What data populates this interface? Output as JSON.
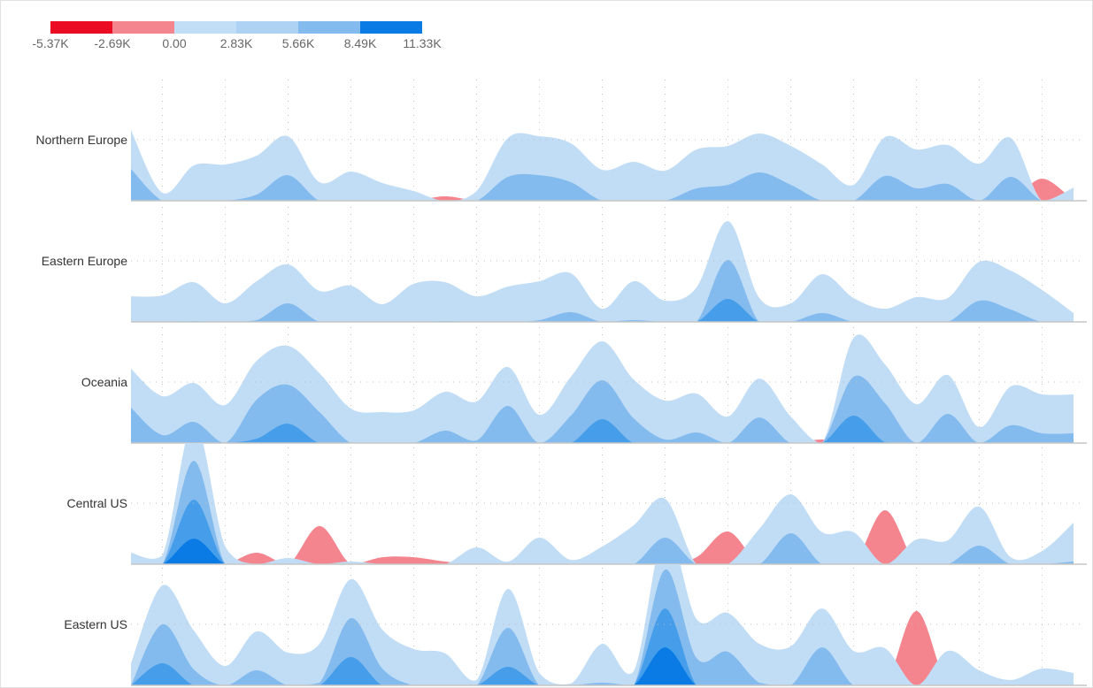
{
  "chart_data": {
    "type": "area",
    "subtype": "horizon",
    "band_size_k": 2.83,
    "negative_band_size_k": 2.69,
    "legend": {
      "ticks": [
        "-5.37K",
        "-2.69K",
        "0.00",
        "2.83K",
        "5.66K",
        "8.49K",
        "11.33K"
      ],
      "colors": [
        "#eb0c24",
        "#f4858f",
        "#c2ddf6",
        "#aed2f4",
        "#84bbee",
        "#0a7ae5"
      ],
      "placement": "top-left"
    },
    "layer_colors_positive": [
      "#c1ddf6",
      "#84bbee",
      "#469eea",
      "#0a7ae5"
    ],
    "layer_colors_negative": [
      "#f4858f",
      "#eb0c24"
    ],
    "x_points": 31,
    "grid": true,
    "series": [
      {
        "name": "Northern Europe",
        "values": [
          5.14,
          0.58,
          2.57,
          2.64,
          3.28,
          4.69,
          1.35,
          2.12,
          1.29,
          0.71,
          -0.32,
          0.71,
          4.57,
          4.69,
          4.18,
          2.25,
          2.83,
          2.19,
          3.73,
          3.99,
          4.89,
          3.99,
          2.64,
          1.16,
          4.63,
          3.73,
          4.05,
          2.7,
          4.57,
          -1.61,
          0.96
        ]
      },
      {
        "name": "Eastern Europe",
        "values": [
          1.86,
          1.93,
          2.89,
          1.35,
          2.96,
          4.18,
          2.25,
          2.64,
          1.29,
          2.77,
          2.89,
          1.86,
          2.57,
          2.96,
          3.54,
          0.96,
          2.96,
          1.54,
          2.51,
          7.33,
          1.74,
          1.35,
          3.47,
          1.74,
          0.96,
          1.8,
          1.74,
          4.37,
          3.73,
          2.32,
          0.64
        ]
      },
      {
        "name": "Oceania",
        "values": [
          5.4,
          3.41,
          4.37,
          2.77,
          5.98,
          7.07,
          5.08,
          2.51,
          2.25,
          2.38,
          3.73,
          3.02,
          5.53,
          2.06,
          4.82,
          7.4,
          4.63,
          3.09,
          3.6,
          1.93,
          4.69,
          1.93,
          -0.26,
          7.65,
          5.72,
          2.83,
          4.95,
          1.16,
          4.12,
          3.54,
          3.54
        ]
      },
      {
        "name": "Central US",
        "values": [
          0.84,
          0.64,
          10.35,
          1.29,
          -0.84,
          0.45,
          -2.77,
          0.19,
          -0.51,
          -0.51,
          -0.19,
          1.22,
          0.19,
          1.93,
          0.32,
          1.29,
          2.83,
          4.76,
          -0.51,
          -2.38,
          2.57,
          5.08,
          2.32,
          2.32,
          -3.92,
          1.8,
          1.74,
          4.18,
          0.51,
          0.96,
          3.02
        ]
      },
      {
        "name": "Eastern US",
        "values": [
          1.61,
          7.27,
          3.99,
          1.41,
          3.92,
          2.38,
          3.02,
          7.72,
          4.05,
          2.64,
          2.32,
          0.39,
          7.01,
          0.9,
          0.13,
          3.02,
          1.03,
          11.25,
          4.82,
          5.27,
          3.02,
          2.83,
          5.59,
          2.51,
          2.7,
          -5.4,
          2.51,
          1.09,
          0.39,
          1.22,
          0.9
        ]
      }
    ]
  }
}
